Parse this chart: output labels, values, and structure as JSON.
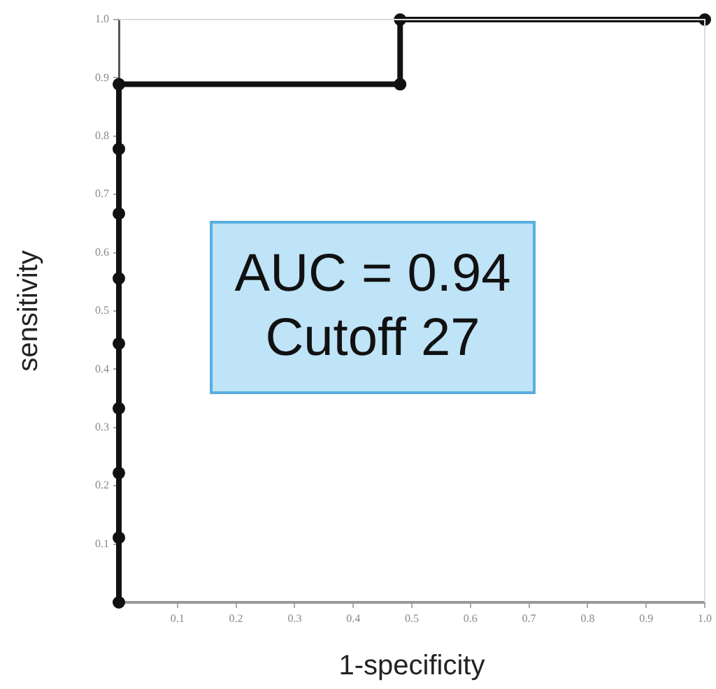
{
  "chart_data": {
    "type": "line",
    "xlabel": "1-specificity",
    "ylabel": "sensitivity",
    "annotations": [
      "AUC = 0.94",
      "Cutoff 27"
    ],
    "series": [
      {
        "color": "#111111",
        "x": [
          0,
          0,
          0,
          0,
          0,
          0,
          0,
          0,
          0,
          0.48,
          0.48,
          1
        ],
        "values": [
          0,
          0.111,
          0.222,
          0.333,
          0.444,
          0.556,
          0.667,
          0.778,
          0.889,
          0.889,
          1,
          1
        ]
      }
    ],
    "marker": "circle",
    "xlim": [
      0,
      1
    ],
    "ylim": [
      0,
      1
    ],
    "xticks": [
      0.1,
      0.2,
      0.3,
      0.4,
      0.5,
      0.6,
      0.7,
      0.8,
      0.9,
      {
        "value": 1,
        "label": "1.0"
      }
    ],
    "yticks": [
      0.1,
      0.2,
      0.3,
      0.4,
      0.5,
      0.6,
      0.7,
      0.8,
      0.9,
      {
        "value": 1,
        "label": "1.0"
      }
    ],
    "grid": false,
    "legend": false
  }
}
